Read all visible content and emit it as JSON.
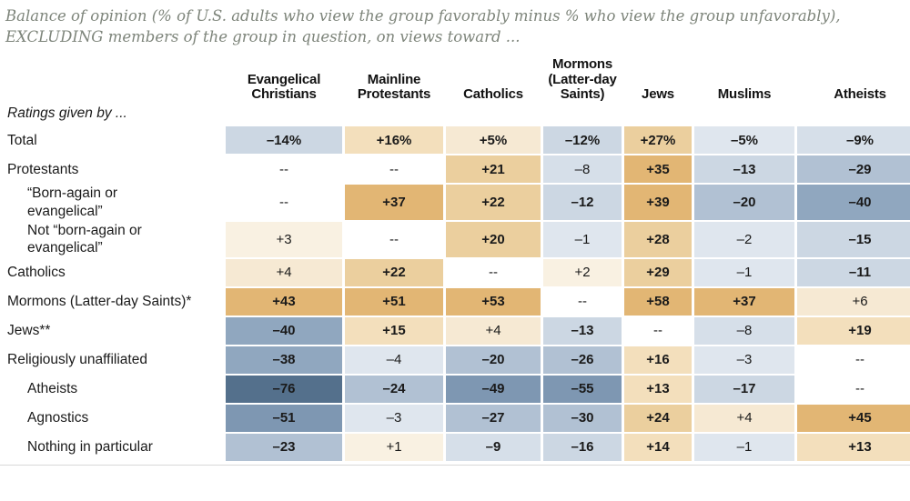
{
  "title": {
    "line1": "Balance of opinion (% of U.S. adults who view the group favorably minus % who view the group unfavorably),",
    "line2": "EXCLUDING members of the group in question, on views toward ..."
  },
  "ratings_label": "Ratings given by ...",
  "colors": {
    "positive_scale": [
      "#f9f1e2",
      "#f6e9d3",
      "#f3dfbc",
      "#ebcf9e",
      "#e2b674"
    ],
    "negative_scale": [
      "#dfe6ee",
      "#d6dfe9",
      "#ccd7e3",
      "#b1c1d3",
      "#90a7bf",
      "#7e97b2",
      "#54708c"
    ],
    "empty_cell": "#ffffff",
    "text": "#1a1a1a",
    "title_text": "#7e857b"
  },
  "chart_data": {
    "type": "heatmap",
    "title": "Balance of opinion (% of U.S. adults who view the group favorably minus % who view the group unfavorably), EXCLUDING members of the group in question, on views toward ...",
    "legend_position": "none",
    "columns": [
      {
        "name": "Evangelical Christians",
        "display": "Evangelical\nChristians"
      },
      {
        "name": "Mainline Protestants",
        "display": "Mainline\nProtestants"
      },
      {
        "name": "Catholics",
        "display": "Catholics"
      },
      {
        "name": "Mormons (Latter-day Saints)",
        "display": "Mormons\n(Latter-day\nSaints)"
      },
      {
        "name": "Jews",
        "display": "Jews"
      },
      {
        "name": "Muslims",
        "display": "Muslims"
      },
      {
        "name": "Atheists",
        "display": "Atheists"
      }
    ],
    "rows": [
      {
        "label": "Total",
        "display": "Total",
        "indent": 0,
        "values": [
          "–14%",
          "+16%",
          "+5%",
          "–12%",
          "+27%",
          "–5%",
          "–9%"
        ],
        "numeric": [
          -14,
          16,
          5,
          -12,
          27,
          -5,
          -9
        ]
      },
      {
        "label": "Protestants",
        "display": "Protestants",
        "indent": 0,
        "values": [
          "--",
          "--",
          "+21",
          "–8",
          "+35",
          "–13",
          "–29"
        ],
        "numeric": [
          null,
          null,
          21,
          -8,
          35,
          -13,
          -29
        ]
      },
      {
        "label": "“Born-again or evangelical”",
        "display": "“Born-again or\nevangelical”",
        "indent": 1,
        "values": [
          "--",
          "+37",
          "+22",
          "–12",
          "+39",
          "–20",
          "–40"
        ],
        "numeric": [
          null,
          37,
          22,
          -12,
          39,
          -20,
          -40
        ]
      },
      {
        "label": "Not “born-again or evangelical”",
        "display": "Not “born-again or\nevangelical”",
        "indent": 1,
        "values": [
          "+3",
          "--",
          "+20",
          "–1",
          "+28",
          "–2",
          "–15"
        ],
        "numeric": [
          3,
          null,
          20,
          -1,
          28,
          -2,
          -15
        ]
      },
      {
        "label": "Catholics",
        "display": "Catholics",
        "indent": 0,
        "values": [
          "+4",
          "+22",
          "--",
          "+2",
          "+29",
          "–1",
          "–11"
        ],
        "numeric": [
          4,
          22,
          null,
          2,
          29,
          -1,
          -11
        ]
      },
      {
        "label": "Mormons (Latter-day Saints)*",
        "display": "Mormons (Latter-day Saints)*",
        "indent": 0,
        "values": [
          "+43",
          "+51",
          "+53",
          "--",
          "+58",
          "+37",
          "+6"
        ],
        "numeric": [
          43,
          51,
          53,
          null,
          58,
          37,
          6
        ]
      },
      {
        "label": "Jews**",
        "display": "Jews**",
        "indent": 0,
        "values": [
          "–40",
          "+15",
          "+4",
          "–13",
          "--",
          "–8",
          "+19"
        ],
        "numeric": [
          -40,
          15,
          4,
          -13,
          null,
          -8,
          19
        ]
      },
      {
        "label": "Religiously unaffiliated",
        "display": "Religiously unaffiliated",
        "indent": 0,
        "values": [
          "–38",
          "–4",
          "–20",
          "–26",
          "+16",
          "–3",
          "--"
        ],
        "numeric": [
          -38,
          -4,
          -20,
          -26,
          16,
          -3,
          null
        ]
      },
      {
        "label": "Atheists",
        "display": "Atheists",
        "indent": 1,
        "values": [
          "–76",
          "–24",
          "–49",
          "–55",
          "+13",
          "–17",
          "--"
        ],
        "numeric": [
          -76,
          -24,
          -49,
          -55,
          13,
          -17,
          null
        ]
      },
      {
        "label": "Agnostics",
        "display": "Agnostics",
        "indent": 1,
        "values": [
          "–51",
          "–3",
          "–27",
          "–30",
          "+24",
          "+4",
          "+45"
        ],
        "numeric": [
          -51,
          -3,
          -27,
          -30,
          24,
          4,
          45
        ]
      },
      {
        "label": "Nothing in particular",
        "display": "Nothing in particular",
        "indent": 1,
        "values": [
          "–23",
          "+1",
          "–9",
          "–16",
          "+14",
          "–1",
          "+13"
        ],
        "numeric": [
          -23,
          1,
          -9,
          -16,
          14,
          -1,
          13
        ]
      }
    ]
  }
}
